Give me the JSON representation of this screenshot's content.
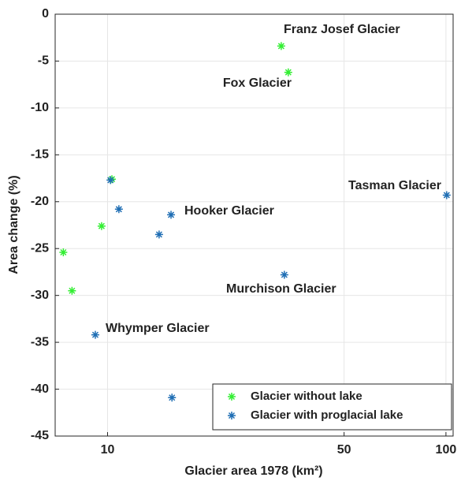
{
  "chart_data": {
    "type": "scatter",
    "xlabel": "Glacier area 1978 (km²)",
    "ylabel": "Area change (%)",
    "xscale": "log",
    "xlim": [
      7,
      105
    ],
    "ylim": [
      -45,
      0
    ],
    "xticks": [
      10,
      50,
      100
    ],
    "yticks": [
      -45,
      -40,
      -35,
      -30,
      -25,
      -20,
      -15,
      -10,
      -5,
      0
    ],
    "grid": true,
    "legend": "lower right",
    "series": [
      {
        "name": "Glacier without lake",
        "color": "#33ee33",
        "x": [
          32.6,
          34.2,
          10.3,
          9.6,
          7.4,
          7.85
        ],
        "values": [
          -3.4,
          -6.2,
          -17.6,
          -22.6,
          -25.4,
          -29.5
        ]
      },
      {
        "name": "Glacier with proglacial lake",
        "color": "#1f6eb4",
        "x": [
          10.2,
          10.8,
          15.4,
          14.2,
          33.3,
          100.5,
          9.2,
          15.5
        ],
        "values": [
          -17.7,
          -20.8,
          -21.4,
          -23.5,
          -27.8,
          -19.3,
          -34.2,
          -40.9
        ]
      }
    ],
    "annotations": [
      {
        "text": "Franz Josef Glacier"
      },
      {
        "text": "Fox Glacier"
      },
      {
        "text": "Hooker Glacier"
      },
      {
        "text": "Tasman Glacier"
      },
      {
        "text": "Murchison Glacier"
      },
      {
        "text": "Whymper Glacier"
      }
    ]
  }
}
